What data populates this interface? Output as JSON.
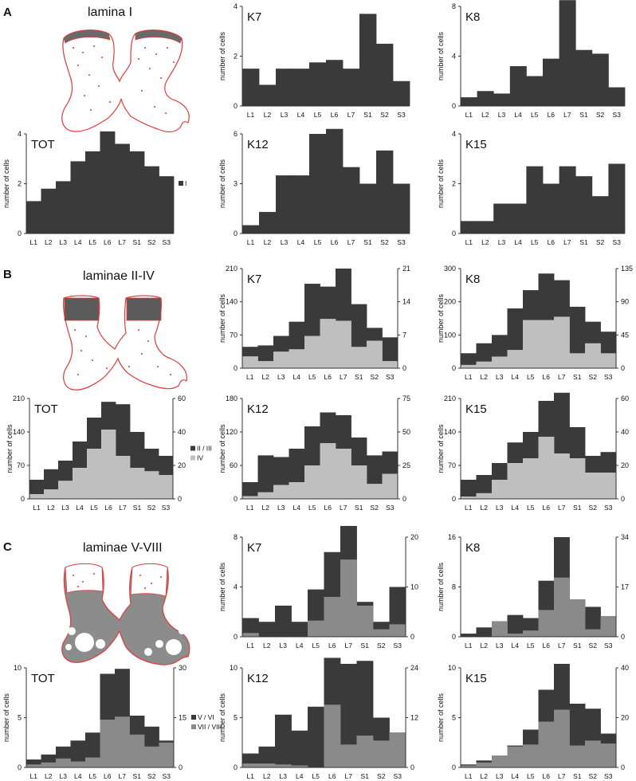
{
  "sections": [
    {
      "letter": "A",
      "title": "lamina I"
    },
    {
      "letter": "B",
      "title": "laminae II-IV"
    },
    {
      "letter": "C",
      "title": "laminae V-VIII"
    }
  ],
  "common": {
    "ylabel": "number of cells",
    "categories": [
      "L1",
      "L2",
      "L3",
      "L4",
      "L5",
      "L6",
      "L7",
      "S1",
      "S2",
      "S3"
    ]
  },
  "colors": {
    "dark": "#3a3a3a",
    "light": "#bfbfbf",
    "mid": "#8a8a8a",
    "outline": "#e23b3b",
    "grey_matter": "#8c8c8c"
  },
  "chart_data": [
    {
      "id": "A-K7",
      "type": "bar",
      "title": "K7",
      "ylabel": "number of cells",
      "ylim": [
        0,
        4
      ],
      "yticks": [
        0,
        2,
        4
      ],
      "categories": [
        "L1",
        "L2",
        "L3",
        "L4",
        "L5",
        "L6",
        "L7",
        "S1",
        "S2",
        "S3"
      ],
      "series": [
        {
          "values": [
            1.5,
            0.85,
            1.5,
            1.5,
            1.75,
            1.85,
            1.5,
            3.7,
            2.5,
            1.0
          ]
        }
      ]
    },
    {
      "id": "A-K8",
      "type": "bar",
      "title": "K8",
      "ylabel": "number of cells",
      "ylim": [
        0,
        8
      ],
      "yticks": [
        0,
        4,
        8
      ],
      "categories": [
        "L1",
        "L2",
        "L3",
        "L4",
        "L5",
        "L6",
        "L7",
        "S1",
        "S2",
        "S3"
      ],
      "series": [
        {
          "values": [
            0.7,
            1.2,
            1.0,
            3.2,
            2.4,
            3.8,
            8.5,
            4.5,
            4.2,
            1.5
          ]
        }
      ]
    },
    {
      "id": "A-TOT",
      "type": "bar",
      "title": "TOT",
      "ylabel": "number of cells",
      "ylim": [
        0,
        4
      ],
      "yticks": [
        0,
        2,
        4
      ],
      "categories": [
        "L1",
        "L2",
        "L3",
        "L4",
        "L5",
        "L6",
        "L7",
        "S1",
        "S2",
        "S3"
      ],
      "legend": [
        "I"
      ],
      "series": [
        {
          "name": "I",
          "values": [
            1.3,
            1.8,
            2.1,
            2.9,
            3.3,
            4.1,
            3.6,
            3.3,
            2.7,
            2.3
          ]
        }
      ]
    },
    {
      "id": "A-K12",
      "type": "bar",
      "title": "K12",
      "ylabel": "number of cells",
      "ylim": [
        0,
        6
      ],
      "yticks": [
        0,
        3,
        6
      ],
      "categories": [
        "L1",
        "L2",
        "L3",
        "L4",
        "L5",
        "L6",
        "L7",
        "S1",
        "S2",
        "S3"
      ],
      "series": [
        {
          "values": [
            0.5,
            1.3,
            3.5,
            3.5,
            6.0,
            6.3,
            4.0,
            3.0,
            5.0,
            3.0
          ]
        }
      ]
    },
    {
      "id": "A-K15",
      "type": "bar",
      "title": "K15",
      "ylabel": "number of cells",
      "ylim": [
        0,
        4
      ],
      "yticks": [
        0,
        2,
        4
      ],
      "categories": [
        "L1",
        "L2",
        "L3",
        "L4",
        "L5",
        "L6",
        "L7",
        "S1",
        "S2",
        "S3"
      ],
      "series": [
        {
          "values": [
            0.5,
            0.5,
            1.2,
            1.2,
            2.7,
            2.0,
            2.7,
            2.3,
            1.5,
            2.8
          ]
        }
      ]
    },
    {
      "id": "B-K7",
      "type": "bar",
      "title": "K7",
      "ylabel": "number of cells",
      "ylim": [
        0,
        210
      ],
      "yticks": [
        0,
        70,
        140,
        210
      ],
      "y2lim": [
        0,
        21
      ],
      "y2ticks": [
        0,
        7,
        14,
        21
      ],
      "categories": [
        "L1",
        "L2",
        "L3",
        "L4",
        "L5",
        "L6",
        "L7",
        "S1",
        "S2",
        "S3"
      ],
      "series": [
        {
          "name": "II / III",
          "values": [
            45,
            48,
            68,
            98,
            178,
            172,
            210,
            135,
            85,
            65
          ]
        },
        {
          "name": "IV",
          "values": [
            25,
            15,
            35,
            40,
            68,
            104,
            100,
            45,
            58,
            15
          ]
        }
      ]
    },
    {
      "id": "B-K8",
      "type": "bar",
      "title": "K8",
      "ylabel": "number of cells",
      "ylim": [
        0,
        300
      ],
      "yticks": [
        0,
        100,
        200,
        300
      ],
      "y2lim": [
        0,
        135
      ],
      "y2ticks": [
        0,
        45,
        90,
        135
      ],
      "categories": [
        "L1",
        "L2",
        "L3",
        "L4",
        "L5",
        "L6",
        "L7",
        "S1",
        "S2",
        "S3"
      ],
      "series": [
        {
          "name": "II / III",
          "values": [
            45,
            75,
            100,
            180,
            235,
            285,
            265,
            185,
            140,
            110
          ]
        },
        {
          "name": "IV",
          "values": [
            10,
            20,
            35,
            55,
            145,
            145,
            155,
            45,
            75,
            45
          ]
        }
      ]
    },
    {
      "id": "B-TOT",
      "type": "bar",
      "title": "TOT",
      "ylabel": "number of cells",
      "ylim": [
        0,
        210
      ],
      "yticks": [
        0,
        70,
        140,
        210
      ],
      "y2lim": [
        0,
        60
      ],
      "y2ticks": [
        0,
        20,
        40,
        60
      ],
      "categories": [
        "L1",
        "L2",
        "L3",
        "L4",
        "L5",
        "L6",
        "L7",
        "S1",
        "S2",
        "S3"
      ],
      "legend": [
        "II / III",
        "IV"
      ],
      "series": [
        {
          "name": "II / III",
          "values": [
            40,
            62,
            80,
            120,
            170,
            203,
            198,
            140,
            105,
            90
          ]
        },
        {
          "name": "IV",
          "values": [
            10,
            20,
            38,
            65,
            105,
            145,
            90,
            65,
            58,
            50
          ]
        }
      ]
    },
    {
      "id": "B-K12",
      "type": "bar",
      "title": "K12",
      "ylabel": "number of cells",
      "ylim": [
        0,
        180
      ],
      "yticks": [
        0,
        60,
        120,
        180
      ],
      "y2lim": [
        0,
        75
      ],
      "y2ticks": [
        0,
        25,
        50,
        75
      ],
      "categories": [
        "L1",
        "L2",
        "L3",
        "L4",
        "L5",
        "L6",
        "L7",
        "S1",
        "S2",
        "S3"
      ],
      "series": [
        {
          "name": "II / III",
          "values": [
            30,
            78,
            75,
            90,
            130,
            155,
            150,
            110,
            78,
            85
          ]
        },
        {
          "name": "IV",
          "values": [
            5,
            12,
            25,
            30,
            60,
            100,
            90,
            60,
            27,
            45
          ]
        }
      ]
    },
    {
      "id": "B-K15",
      "type": "bar",
      "title": "K15",
      "ylabel": "number of cells",
      "ylim": [
        0,
        210
      ],
      "yticks": [
        0,
        70,
        140,
        210
      ],
      "y2lim": [
        0,
        60
      ],
      "y2ticks": [
        0,
        20,
        40,
        60
      ],
      "categories": [
        "L1",
        "L2",
        "L3",
        "L4",
        "L5",
        "L6",
        "L7",
        "S1",
        "S2",
        "S3"
      ],
      "series": [
        {
          "name": "II / III",
          "values": [
            40,
            50,
            75,
            118,
            140,
            205,
            222,
            150,
            90,
            98
          ]
        },
        {
          "name": "IV",
          "values": [
            5,
            12,
            40,
            75,
            85,
            130,
            95,
            85,
            55,
            55
          ]
        }
      ]
    },
    {
      "id": "C-K7",
      "type": "bar",
      "title": "K7",
      "ylabel": "number of cells",
      "ylim": [
        0,
        8
      ],
      "yticks": [
        0,
        4,
        8
      ],
      "y2lim": [
        0,
        20
      ],
      "y2ticks": [
        0,
        10,
        20
      ],
      "categories": [
        "L1",
        "L2",
        "L3",
        "L4",
        "L5",
        "L6",
        "L7",
        "S1",
        "S2",
        "S3"
      ],
      "series": [
        {
          "name": "V / VI",
          "values": [
            1.5,
            1.2,
            2.5,
            1.2,
            3.8,
            6.8,
            8.9,
            2.8,
            1.2,
            4.0
          ]
        },
        {
          "name": "VII / VIII",
          "values": [
            0.3,
            0,
            0,
            0,
            1.3,
            3.2,
            6.2,
            2.5,
            0.6,
            1.0
          ]
        }
      ]
    },
    {
      "id": "C-K8",
      "type": "bar",
      "title": "K8",
      "ylabel": "number of cells",
      "ylim": [
        0,
        16
      ],
      "yticks": [
        0,
        8,
        16
      ],
      "y2lim": [
        0,
        34
      ],
      "y2ticks": [
        0,
        17,
        34
      ],
      "categories": [
        "L1",
        "L2",
        "L3",
        "L4",
        "L5",
        "L6",
        "L7",
        "S1",
        "S2",
        "S3"
      ],
      "series": [
        {
          "name": "V / VI",
          "values": [
            0.5,
            1.5,
            2.5,
            3.5,
            3.0,
            9.0,
            16.0,
            6.0,
            4.8,
            3.3
          ]
        },
        {
          "name": "VII / VIII",
          "values": [
            0,
            0,
            2.5,
            0.5,
            1.0,
            4.3,
            9.5,
            6.0,
            1.2,
            3.3
          ]
        }
      ]
    },
    {
      "id": "C-TOT",
      "type": "bar",
      "title": "TOT",
      "ylabel": "number of cells",
      "ylim": [
        0,
        10
      ],
      "yticks": [
        0,
        5,
        10
      ],
      "y2lim": [
        0,
        30
      ],
      "y2ticks": [
        0,
        15,
        30
      ],
      "categories": [
        "L1",
        "L2",
        "L3",
        "L4",
        "L5",
        "L6",
        "L7",
        "S1",
        "S2",
        "S3"
      ],
      "legend": [
        "V / VI",
        "VII / VIII"
      ],
      "series": [
        {
          "name": "V / VI",
          "values": [
            0.8,
            1.3,
            2.1,
            2.7,
            3.5,
            9.4,
            9.9,
            5.2,
            4.1,
            2.7
          ]
        },
        {
          "name": "VII / VIII",
          "values": [
            0.3,
            0.5,
            0.9,
            0.6,
            1.0,
            4.8,
            5.1,
            3.3,
            2.1,
            2.5
          ]
        }
      ]
    },
    {
      "id": "C-K12",
      "type": "bar",
      "title": "K12",
      "ylabel": "number of cells",
      "ylim": [
        0,
        10
      ],
      "yticks": [
        0,
        5,
        10
      ],
      "y2lim": [
        0,
        24
      ],
      "y2ticks": [
        0,
        12,
        24
      ],
      "categories": [
        "L1",
        "L2",
        "L3",
        "L4",
        "L5",
        "L6",
        "L7",
        "S1",
        "S2",
        "S3"
      ],
      "series": [
        {
          "name": "V / VI",
          "values": [
            1.4,
            2.1,
            5.3,
            3.7,
            6.1,
            11.0,
            10.4,
            10.7,
            5.0,
            3.5
          ]
        },
        {
          "name": "VII / VIII",
          "values": [
            0.4,
            0.4,
            0.3,
            0.2,
            0,
            6.3,
            2.3,
            3.2,
            2.7,
            3.5
          ]
        }
      ]
    },
    {
      "id": "C-K15",
      "type": "bar",
      "title": "K15",
      "ylabel": "number of cells",
      "ylim": [
        0,
        10
      ],
      "yticks": [
        0,
        5,
        10
      ],
      "y2lim": [
        0,
        40
      ],
      "y2ticks": [
        0,
        20,
        40
      ],
      "categories": [
        "L1",
        "L2",
        "L3",
        "L4",
        "L5",
        "L6",
        "L7",
        "S1",
        "S2",
        "S3"
      ],
      "series": [
        {
          "name": "V / VI",
          "values": [
            0.3,
            0.7,
            1.2,
            2.2,
            3.8,
            7.8,
            10.4,
            6.4,
            5.9,
            3.4
          ]
        },
        {
          "name": "VII / VIII",
          "values": [
            0.2,
            0.5,
            1.2,
            2.1,
            2.3,
            4.6,
            5.8,
            2.2,
            2.7,
            2.4
          ]
        }
      ]
    }
  ]
}
